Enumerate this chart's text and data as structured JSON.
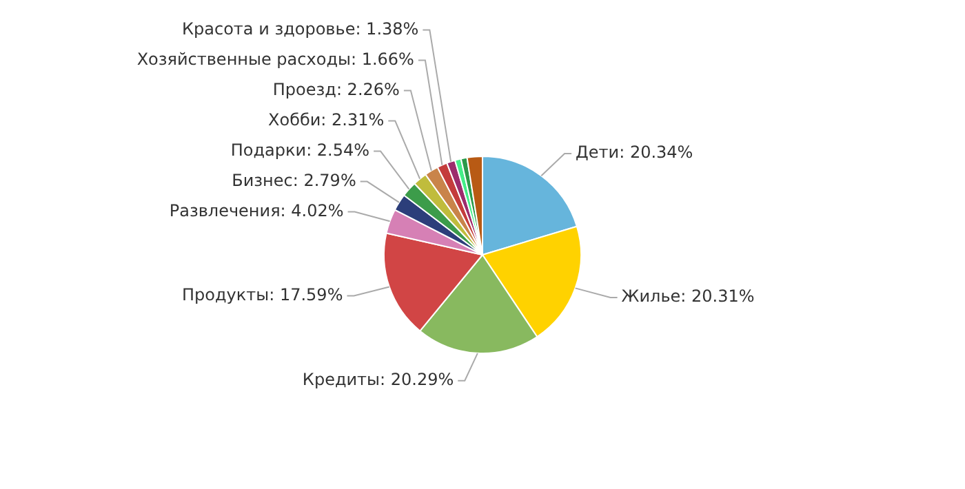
{
  "chart_data": {
    "type": "pie",
    "categories": [
      "Дети",
      "Жилье",
      "Кредиты",
      "Продукты",
      "Развлечения",
      "Бизнес",
      "Подарки",
      "Хобби",
      "Проезд",
      "Хозяйственные расходы",
      "Красота и здоровье",
      null,
      null,
      null
    ],
    "values": [
      20.34,
      20.31,
      20.29,
      17.59,
      4.02,
      2.79,
      2.54,
      2.31,
      2.26,
      1.66,
      1.38,
      1.0,
      1.0,
      2.51
    ],
    "value_labels": [
      "20.34%",
      "20.31%",
      "20.29%",
      "17.59%",
      "4.02%",
      "2.79%",
      "2.54%",
      "2.31%",
      "2.26%",
      "1.66%",
      "1.38%",
      null,
      null,
      null
    ],
    "colors": [
      "#66b5dc",
      "#ffd200",
      "#88b95f",
      "#d14545",
      "#d680b5",
      "#2c3e7a",
      "#3c9c4a",
      "#c0bc3c",
      "#c9844a",
      "#c43c3c",
      "#9c2c6c",
      "#44ee88",
      "#2a9a4a",
      "#b85a14"
    ],
    "legend": false
  }
}
